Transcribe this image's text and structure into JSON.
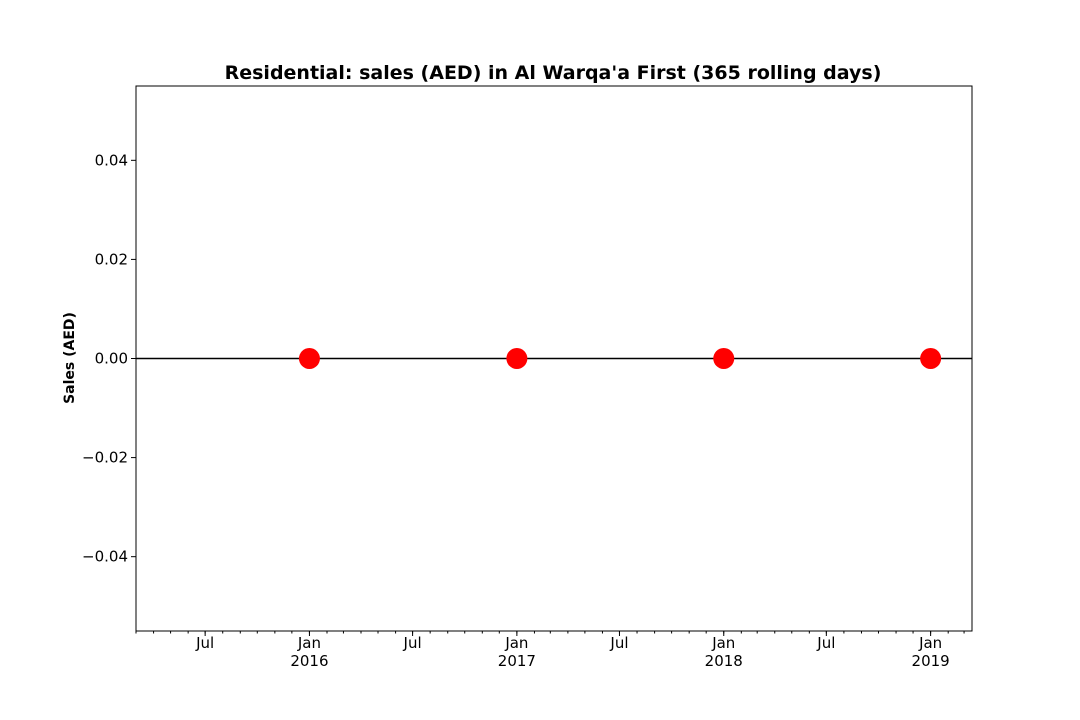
{
  "chart_data": {
    "type": "line",
    "title": "Residential: sales (AED) in Al Warqa'a First (365 rolling days)",
    "xlabel": "",
    "ylabel": "Sales (AED)",
    "x_axis_type": "date",
    "xlim": [
      "2015-03-01",
      "2019-03-15"
    ],
    "ylim": [
      -0.055,
      0.055
    ],
    "yticks": [
      -0.04,
      -0.02,
      0.0,
      0.02,
      0.04
    ],
    "ytick_labels": [
      "−0.04",
      "−0.02",
      "0.00",
      "0.02",
      "0.04"
    ],
    "xticks_major": [
      {
        "date": "2015-07-01",
        "label": "Jul",
        "sublabel": ""
      },
      {
        "date": "2016-01-01",
        "label": "Jan",
        "sublabel": "2016"
      },
      {
        "date": "2016-07-01",
        "label": "Jul",
        "sublabel": ""
      },
      {
        "date": "2017-01-01",
        "label": "Jan",
        "sublabel": "2017"
      },
      {
        "date": "2017-07-01",
        "label": "Jul",
        "sublabel": ""
      },
      {
        "date": "2018-01-01",
        "label": "Jan",
        "sublabel": "2018"
      },
      {
        "date": "2018-07-01",
        "label": "Jul",
        "sublabel": ""
      },
      {
        "date": "2019-01-01",
        "label": "Jan",
        "sublabel": "2019"
      }
    ],
    "grid": false,
    "legend": "none",
    "series": [
      {
        "line_color": "#000000",
        "marker_color": "#ff0000",
        "x": [
          "2016-01-01",
          "2017-01-01",
          "2018-01-01",
          "2019-01-01"
        ],
        "y": [
          0,
          0,
          0,
          0
        ]
      }
    ]
  }
}
